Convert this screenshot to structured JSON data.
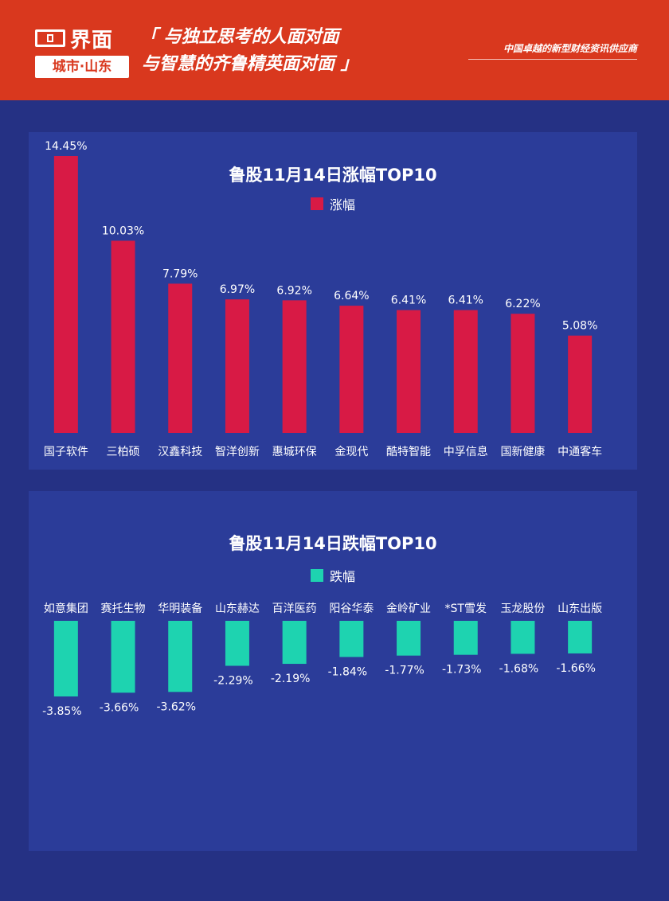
{
  "header": {
    "logo_text": "界面",
    "logo_sub": "城市·山东",
    "slogan_line1": "「 与独立思考的人面对面",
    "slogan_line2": "与智慧的齐鲁精英面对面 」",
    "tagline": "中国卓越的新型财经资讯供应商"
  },
  "colors": {
    "background": "#253184",
    "panel": "#2b3c99",
    "header": "#d9381e",
    "rise": "#d81a45",
    "fall": "#1ed3b0"
  },
  "chart_data": [
    {
      "type": "bar",
      "title": "鲁股11月14日涨幅TOP10",
      "legend": "涨幅",
      "categories": [
        "国子软件",
        "三柏硕",
        "汉鑫科技",
        "智洋创新",
        "惠城环保",
        "金现代",
        "酷特智能",
        "中孚信息",
        "国新健康",
        "中通客车"
      ],
      "values": [
        14.45,
        10.03,
        7.79,
        6.97,
        6.92,
        6.64,
        6.41,
        6.41,
        6.22,
        5.08
      ],
      "labels": [
        "14.45%",
        "10.03%",
        "7.79%",
        "6.97%",
        "6.92%",
        "6.64%",
        "6.41%",
        "6.41%",
        "6.22%",
        "5.08%"
      ],
      "ylim": [
        0,
        14.45
      ]
    },
    {
      "type": "bar",
      "title": "鲁股11月14日跌幅TOP10",
      "legend": "跌幅",
      "categories": [
        "如意集团",
        "赛托生物",
        "华明装备",
        "山东赫达",
        "百洋医药",
        "阳谷华泰",
        "金岭矿业",
        "*ST雪发",
        "玉龙股份",
        "山东出版"
      ],
      "values": [
        -3.85,
        -3.66,
        -3.62,
        -2.29,
        -2.19,
        -1.84,
        -1.77,
        -1.73,
        -1.68,
        -1.66
      ],
      "labels": [
        "-3.85%",
        "-3.66%",
        "-3.62%",
        "-2.29%",
        "-2.19%",
        "-1.84%",
        "-1.77%",
        "-1.73%",
        "-1.68%",
        "-1.66%"
      ],
      "ylim": [
        -3.85,
        0
      ]
    }
  ]
}
